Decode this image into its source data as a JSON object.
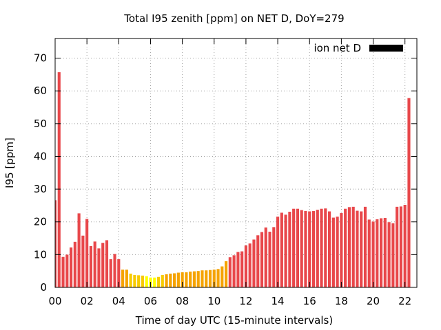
{
  "chart_data": {
    "type": "bar",
    "title": "Total I95 zenith [ppm] on NET D, DoY=279",
    "xlabel": "Time of day UTC (15-minute intervals)",
    "ylabel": "I95 [ppm]",
    "xlim": [
      0,
      22.75
    ],
    "ylim": [
      0,
      76
    ],
    "x_interval_hours": 0.25,
    "grid": true,
    "legend": {
      "position": "top-right",
      "label": "ion net D",
      "color": "#000000"
    },
    "x_ticks": [
      {
        "value": 0,
        "label": "00"
      },
      {
        "value": 2,
        "label": "02"
      },
      {
        "value": 4,
        "label": "04"
      },
      {
        "value": 6,
        "label": "06"
      },
      {
        "value": 8,
        "label": "08"
      },
      {
        "value": 10,
        "label": "10"
      },
      {
        "value": 12,
        "label": "12"
      },
      {
        "value": 14,
        "label": "14"
      },
      {
        "value": 16,
        "label": "16"
      },
      {
        "value": 18,
        "label": "18"
      },
      {
        "value": 20,
        "label": "20"
      },
      {
        "value": 22,
        "label": "22"
      }
    ],
    "y_ticks": [
      {
        "value": 0,
        "label": "0"
      },
      {
        "value": 10,
        "label": "10"
      },
      {
        "value": 20,
        "label": "20"
      },
      {
        "value": 30,
        "label": "30"
      },
      {
        "value": 40,
        "label": "40"
      },
      {
        "value": 50,
        "label": "50"
      },
      {
        "value": 60,
        "label": "60"
      },
      {
        "value": 70,
        "label": "70"
      }
    ],
    "colors": {
      "high": "#e8474a",
      "medium": "#f5a300",
      "low": "#f7cb00",
      "lowest": "#ffff00"
    },
    "values": [
      26.6,
      65.7,
      9.3,
      10.0,
      12.2,
      13.9,
      22.6,
      15.8,
      20.9,
      12.6,
      14.0,
      11.9,
      13.6,
      14.4,
      8.6,
      10.2,
      8.6,
      5.4,
      5.4,
      4.2,
      3.8,
      3.7,
      3.6,
      3.4,
      3.0,
      3.0,
      3.2,
      3.8,
      4.0,
      4.2,
      4.3,
      4.5,
      4.6,
      4.6,
      4.8,
      4.9,
      5.0,
      5.2,
      5.2,
      5.3,
      5.4,
      5.6,
      6.4,
      8.0,
      9.2,
      9.8,
      10.8,
      11.0,
      12.8,
      13.4,
      14.6,
      15.9,
      16.9,
      18.3,
      17.0,
      18.4,
      21.6,
      22.8,
      22.2,
      23.1,
      24.0,
      24.0,
      23.6,
      23.3,
      23.2,
      23.3,
      23.7,
      24.0,
      24.1,
      23.2,
      21.3,
      21.6,
      22.7,
      24.0,
      24.5,
      24.6,
      23.4,
      23.2,
      24.6,
      20.7,
      20.1,
      20.8,
      21.1,
      21.2,
      19.9,
      19.6,
      24.6,
      24.7,
      25.2,
      57.8
    ],
    "color_class": [
      "high",
      "high",
      "high",
      "high",
      "high",
      "high",
      "high",
      "high",
      "high",
      "high",
      "high",
      "high",
      "high",
      "high",
      "high",
      "high",
      "high",
      "medium",
      "medium",
      "low",
      "low",
      "low",
      "low",
      "lowest",
      "lowest",
      "lowest",
      "low",
      "low",
      "medium",
      "medium",
      "medium",
      "medium",
      "medium",
      "medium",
      "medium",
      "medium",
      "medium",
      "medium",
      "medium",
      "medium",
      "medium",
      "medium",
      "medium",
      "medium",
      "high",
      "high",
      "high",
      "high",
      "high",
      "high",
      "high",
      "high",
      "high",
      "high",
      "high",
      "high",
      "high",
      "high",
      "high",
      "high",
      "high",
      "high",
      "high",
      "high",
      "high",
      "high",
      "high",
      "high",
      "high",
      "high",
      "high",
      "high",
      "high",
      "high",
      "high",
      "high",
      "high",
      "high",
      "high",
      "high",
      "high",
      "high",
      "high",
      "high",
      "high",
      "high",
      "high",
      "high",
      "high",
      "high"
    ]
  }
}
